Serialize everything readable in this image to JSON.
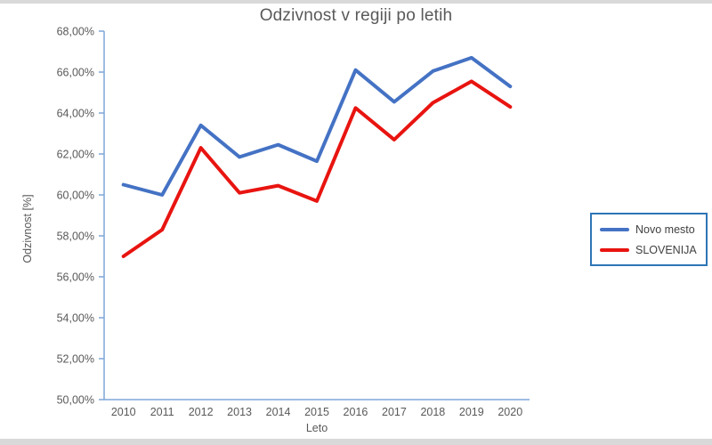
{
  "page": {
    "background_color": "#FFFFFF",
    "edge_strip_color": "#D9D9D9"
  },
  "chart_data": {
    "type": "line",
    "title": "Odzivnost v regiji po letih",
    "xlabel": "Leto",
    "ylabel": "Odzivnost [%]",
    "categories": [
      "2010",
      "2011",
      "2012",
      "2013",
      "2014",
      "2015",
      "2016",
      "2017",
      "2018",
      "2019",
      "2020"
    ],
    "series": [
      {
        "name": "Novo mesto",
        "color": "#4472C4",
        "values": [
          60.5,
          60.0,
          63.4,
          61.85,
          62.45,
          61.65,
          66.1,
          64.55,
          66.05,
          66.7,
          65.3
        ]
      },
      {
        "name": "SLOVENIJA",
        "color": "#E81410",
        "values": [
          57.0,
          58.3,
          62.3,
          60.1,
          60.45,
          59.7,
          64.25,
          62.7,
          64.5,
          65.55,
          64.3
        ]
      }
    ],
    "ylim": [
      50,
      68
    ],
    "y_ticks": [
      68,
      66,
      64,
      62,
      60,
      58,
      56,
      54,
      52,
      50
    ],
    "y_tick_labels": [
      "68,00%",
      "66,00%",
      "64,00%",
      "62,00%",
      "60,00%",
      "58,00%",
      "56,00%",
      "54,00%",
      "52,00%",
      "50,00%"
    ],
    "grid": false,
    "legend_position": "right",
    "legend_border_color": "#2E75B6",
    "axis_color": "#7EA6D8",
    "text_color": "#595959",
    "line_width": 4
  }
}
